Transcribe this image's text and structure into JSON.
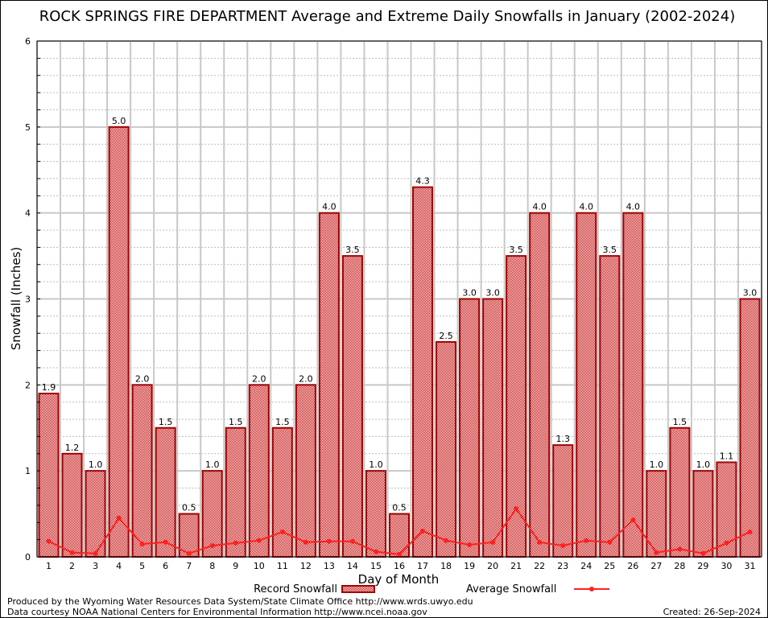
{
  "chart_data": {
    "type": "bar",
    "title": "ROCK SPRINGS FIRE DEPARTMENT Average and Extreme Daily Snowfalls in January (2002-2024)",
    "xlabel": "Day of Month",
    "ylabel": "Snowfall (Inches)",
    "ylim": [
      0,
      6
    ],
    "yticks": [
      "0",
      "1",
      "2",
      "3",
      "4",
      "5",
      "6"
    ],
    "categories": [
      "1",
      "2",
      "3",
      "4",
      "5",
      "6",
      "7",
      "8",
      "9",
      "10",
      "11",
      "12",
      "13",
      "14",
      "15",
      "16",
      "17",
      "18",
      "19",
      "20",
      "21",
      "22",
      "23",
      "24",
      "25",
      "26",
      "27",
      "28",
      "29",
      "30",
      "31"
    ],
    "series": [
      {
        "name": "Record Snowfall",
        "type": "bar",
        "values": [
          1.9,
          1.2,
          1.0,
          5.0,
          2.0,
          1.5,
          0.5,
          1.0,
          1.5,
          2.0,
          1.5,
          2.0,
          4.0,
          3.5,
          1.0,
          0.5,
          4.3,
          2.5,
          3.0,
          3.0,
          3.5,
          4.0,
          1.3,
          4.0,
          3.5,
          4.0,
          1.0,
          1.5,
          1.0,
          1.1,
          3.0
        ],
        "labels": [
          "1.9",
          "1.2",
          "1.0",
          "5.0",
          "2.0",
          "1.5",
          "0.5",
          "1.0",
          "1.5",
          "2.0",
          "1.5",
          "2.0",
          "4.0",
          "3.5",
          "1.0",
          "0.5",
          "4.3",
          "2.5",
          "3.0",
          "3.0",
          "3.5",
          "4.0",
          "1.3",
          "4.0",
          "3.5",
          "4.0",
          "1.0",
          "1.5",
          "1.0",
          "1.1",
          "3.0"
        ],
        "color": "#a00000"
      },
      {
        "name": "Average Snowfall",
        "type": "line",
        "values": [
          0.18,
          0.05,
          0.04,
          0.45,
          0.15,
          0.17,
          0.04,
          0.13,
          0.16,
          0.19,
          0.29,
          0.17,
          0.18,
          0.18,
          0.06,
          0.03,
          0.3,
          0.19,
          0.14,
          0.17,
          0.56,
          0.17,
          0.13,
          0.19,
          0.17,
          0.43,
          0.05,
          0.09,
          0.04,
          0.16,
          0.29
        ],
        "color": "#ff2020"
      }
    ],
    "grid": true,
    "legend": "bottom-center"
  },
  "footer": {
    "produced": "Produced by the Wyoming Water Resources Data System/State Climate Office http://www.wrds.uwyo.edu",
    "courtesy": "Data courtesy NOAA National Centers for Environmental Information http://www.ncei.noaa.gov",
    "created": "Created: 26-Sep-2024"
  }
}
